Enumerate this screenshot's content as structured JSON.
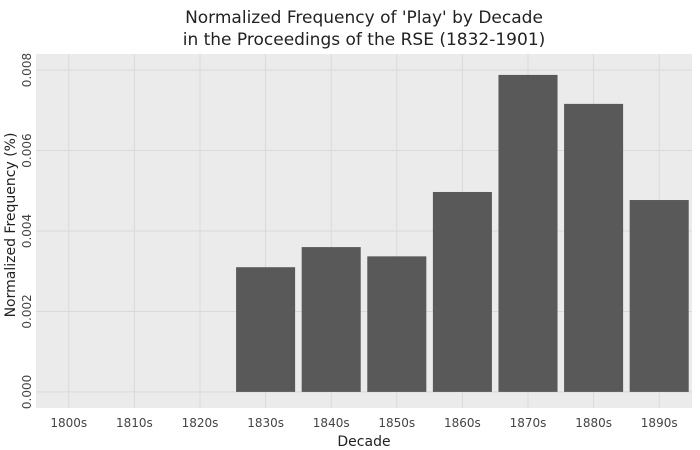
{
  "chart_data": {
    "type": "bar",
    "title_lines": [
      "Normalized Frequency of 'Play' by Decade",
      "in the Proceedings of the RSE (1832-1901)"
    ],
    "xlabel": "Decade",
    "ylabel": "Normalized Frequency (%)",
    "categories": [
      "1800s",
      "1810s",
      "1820s",
      "1830s",
      "1840s",
      "1850s",
      "1860s",
      "1870s",
      "1880s",
      "1890s"
    ],
    "values": [
      null,
      null,
      null,
      0.0031,
      0.0036,
      0.00337,
      0.00497,
      0.00788,
      0.00716,
      0.00477
    ],
    "y_ticks": [
      0,
      0.002,
      0.004,
      0.006,
      0.008
    ],
    "y_tick_labels": [
      "0.000",
      "0.002",
      "0.004",
      "0.006",
      "0.008"
    ],
    "ylim": [
      -0.0004,
      0.0084
    ],
    "grid": true,
    "colors": {
      "panel_background": "#ebebeb",
      "grid_line": "#d9d9d9",
      "bar_fill": "#595959"
    }
  }
}
